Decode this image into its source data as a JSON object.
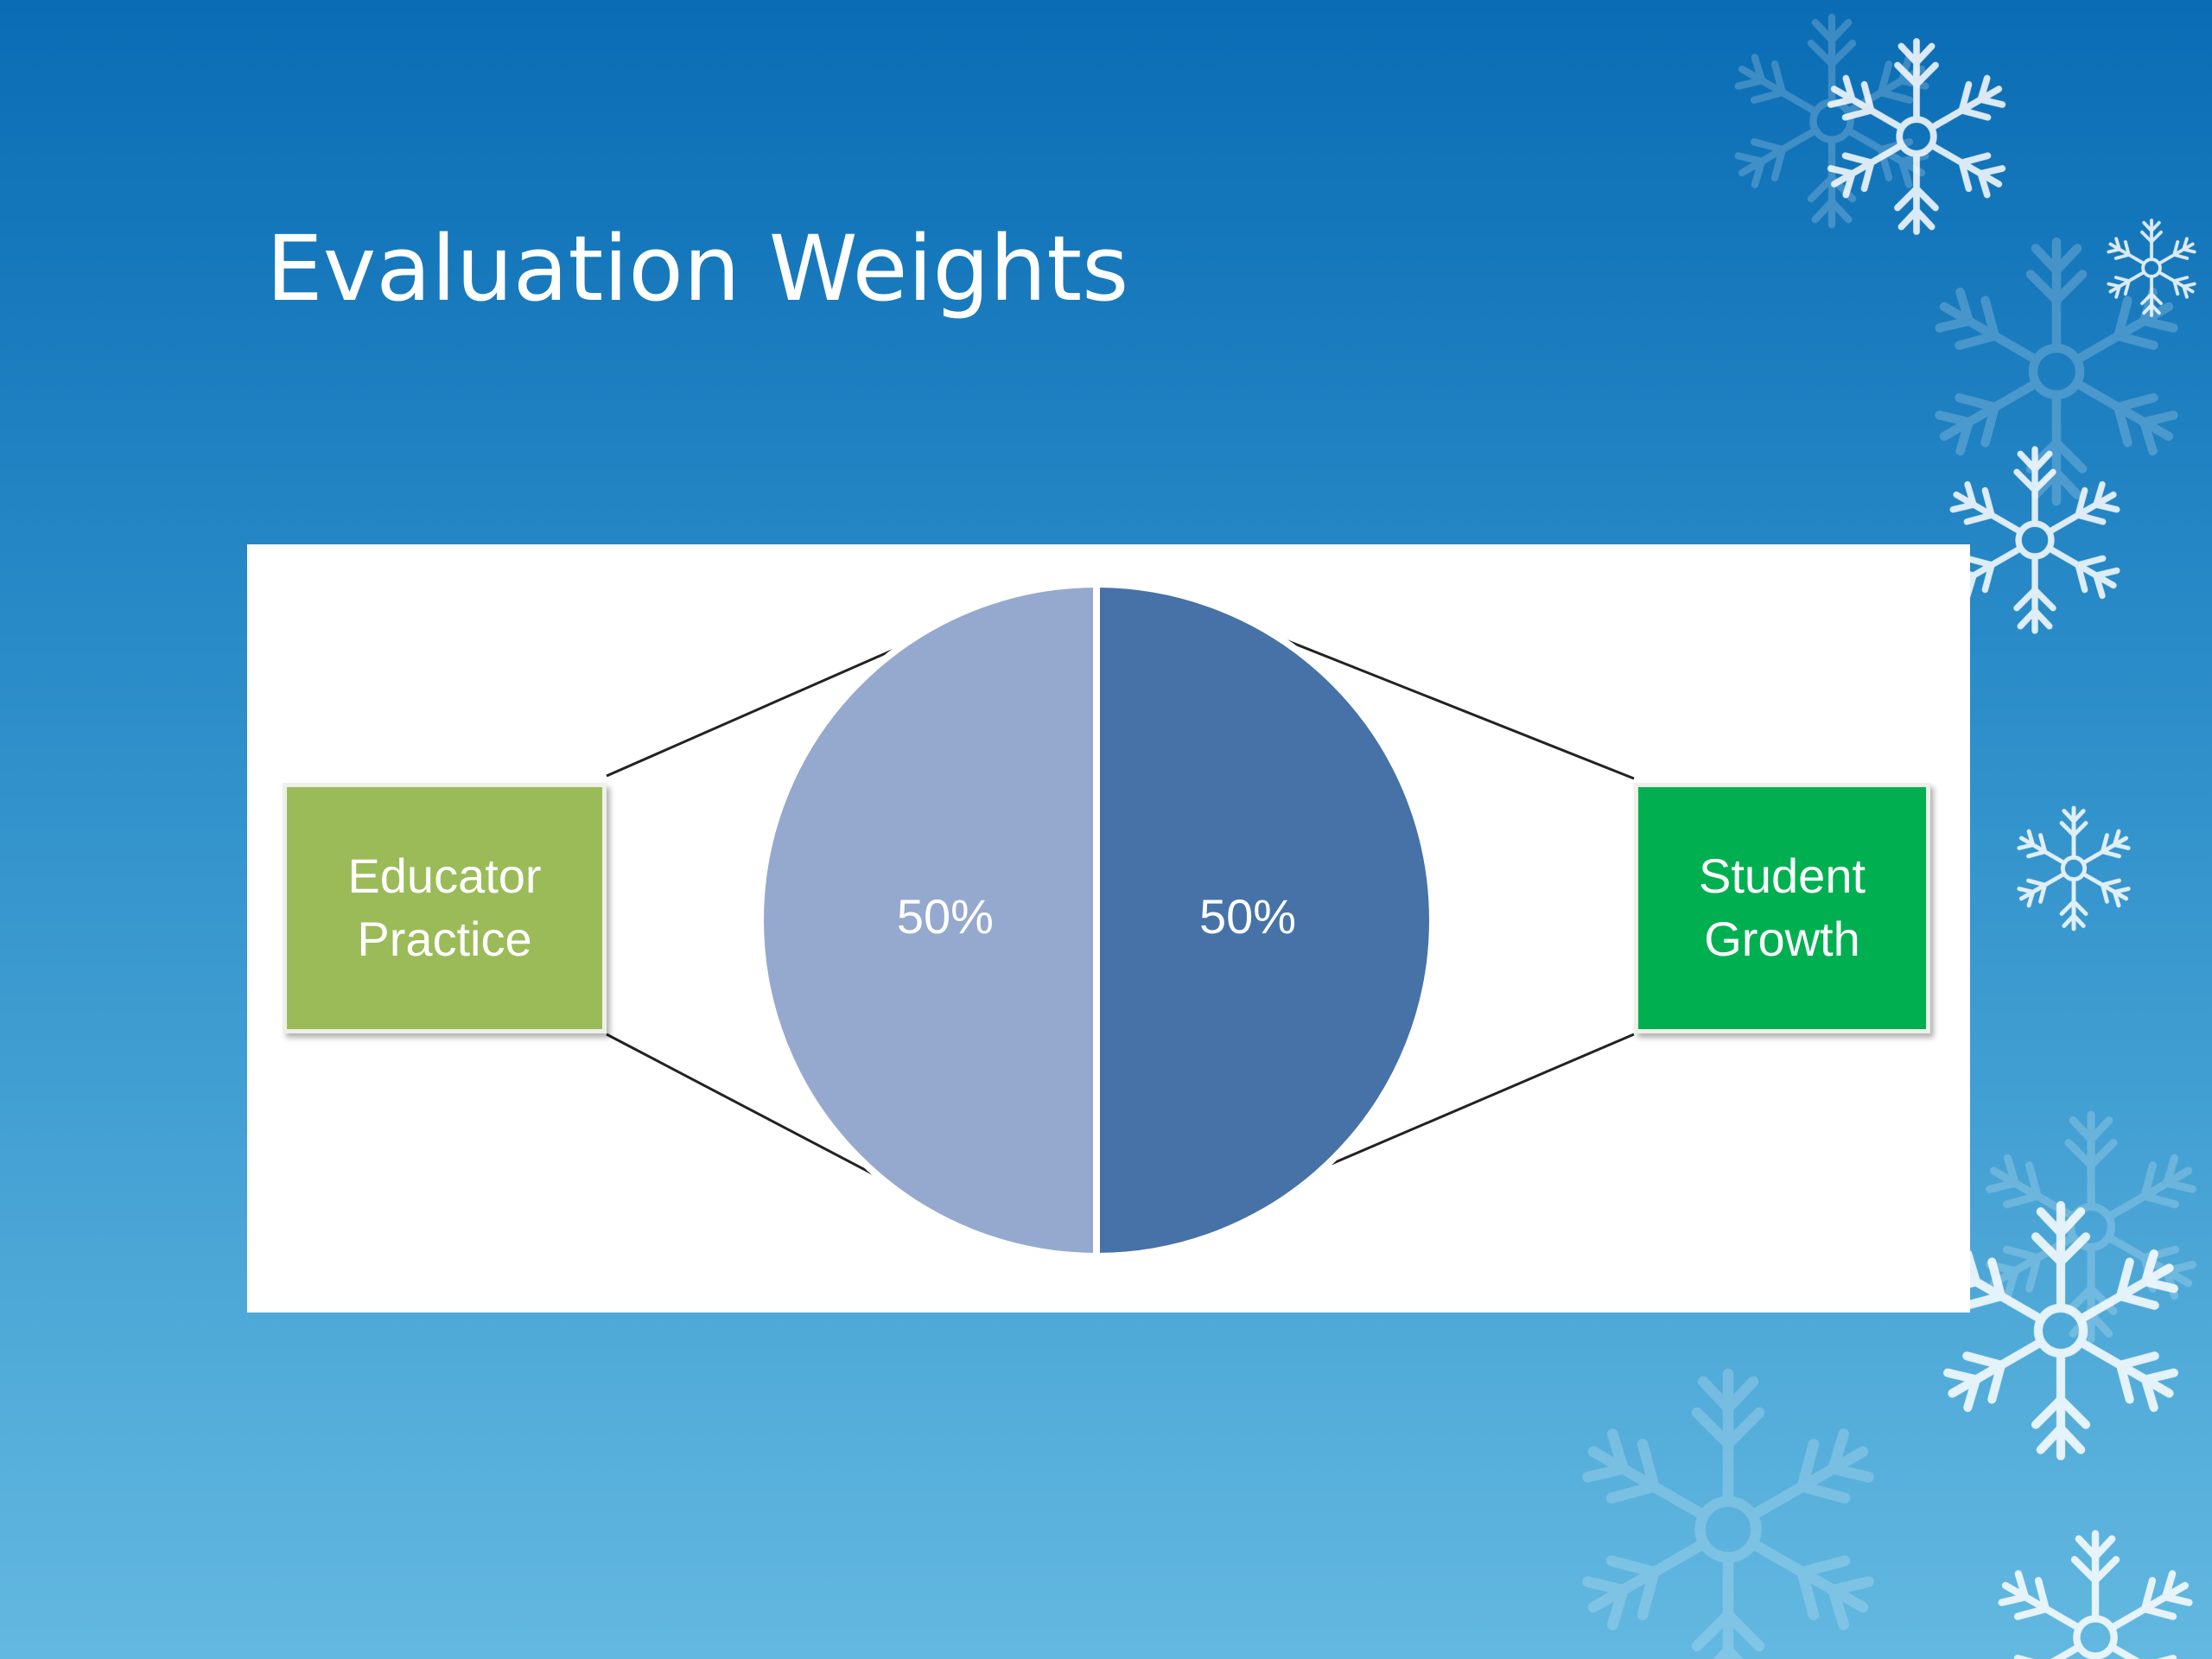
{
  "chart_data": {
    "type": "pie",
    "title": "Evaluation Weights",
    "categories": [
      "Educator Practice",
      "Student Growth"
    ],
    "values": [
      50,
      50
    ],
    "value_labels": [
      "50%",
      "50%"
    ],
    "colors": [
      "#95a9cf",
      "#4672a8"
    ],
    "box_colors": [
      "#9bbb59",
      "#00b050"
    ]
  }
}
